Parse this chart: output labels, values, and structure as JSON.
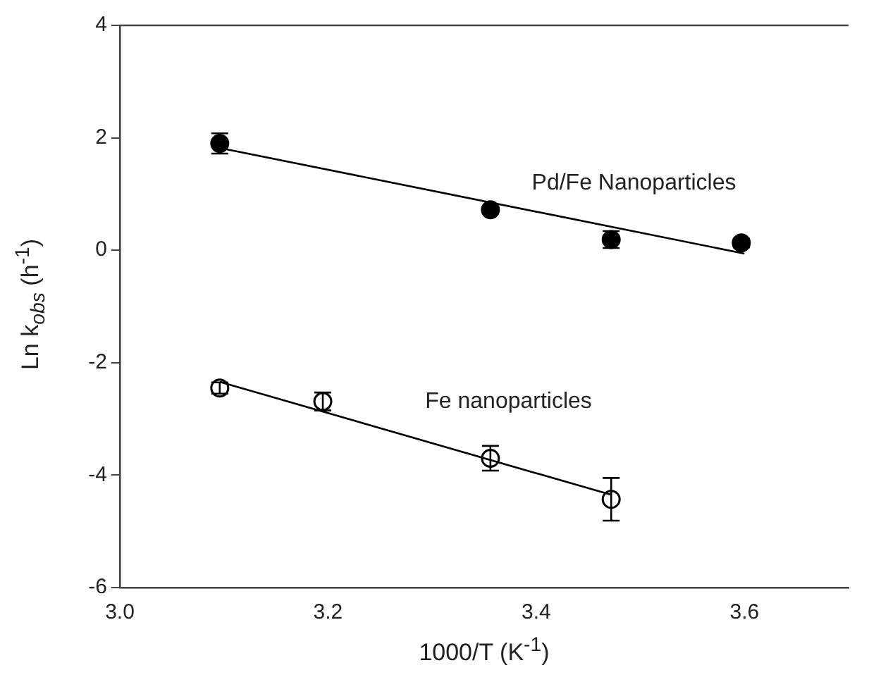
{
  "chart_data": {
    "type": "scatter",
    "xlabel": "1000/T (K$^{-1}$)",
    "ylabel": "Ln k$_{obs}$ (h$^{-1}$)",
    "xlim": [
      3.0,
      3.7
    ],
    "xticks": [
      {
        "value": 3.0,
        "label": "3.0"
      },
      {
        "value": 3.2,
        "label": "3.2"
      },
      {
        "value": 3.4,
        "label": "3.4"
      },
      {
        "value": 3.6,
        "label": "3.6"
      }
    ],
    "ylim": [
      -6,
      4
    ],
    "yticks": [
      -6,
      -4,
      -2,
      0,
      2,
      4
    ],
    "grid": false,
    "legend": false,
    "marker": "circle",
    "series": [
      {
        "name": "Pd/Fe Nanoparticles",
        "color": "#000000",
        "x": [
          3.096,
          3.356,
          3.472,
          3.597
        ],
        "values": [
          1.9,
          0.72,
          0.19,
          0.13
        ],
        "errors": [
          0.18,
          0.05,
          0.15,
          0.08
        ]
      },
      {
        "name": "Fe nanoparticles",
        "color": "#ffffff",
        "x": [
          3.096,
          3.195,
          3.356,
          3.472
        ],
        "values": [
          -2.45,
          -2.69,
          -3.7,
          -4.43
        ],
        "errors": [
          0.1,
          0.16,
          0.22,
          0.38
        ]
      },
      {
        "type": "line",
        "color": "#000000",
        "marker": "none",
        "x": [
          3.096,
          3.6
        ],
        "values": [
          1.82,
          -0.06
        ]
      },
      {
        "type": "line",
        "color": "#000000",
        "marker": "none",
        "x": [
          3.096,
          3.472
        ],
        "values": [
          -2.34,
          -4.35
        ]
      }
    ]
  }
}
